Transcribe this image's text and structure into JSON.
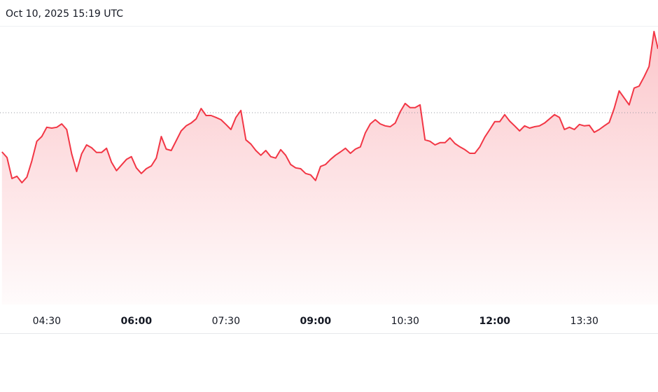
{
  "chart_data": {
    "type": "area-line",
    "title": "Oct 10, 2025 15:19 UTC",
    "x": [
      225,
      230,
      235,
      240,
      245,
      250,
      255,
      260,
      265,
      270,
      275,
      280,
      285,
      290,
      295,
      300,
      305,
      310,
      315,
      320,
      325,
      330,
      335,
      340,
      345,
      350,
      355,
      360,
      365,
      370,
      375,
      380,
      385,
      390,
      395,
      400,
      405,
      410,
      415,
      420,
      425,
      430,
      435,
      440,
      445,
      450,
      455,
      460,
      465,
      470,
      475,
      480,
      485,
      490,
      495,
      500,
      505,
      510,
      515,
      520,
      525,
      530,
      535,
      540,
      545,
      550,
      555,
      560,
      565,
      570,
      575,
      580,
      585,
      590,
      595,
      600,
      605,
      610,
      615,
      620,
      625,
      630,
      635,
      640,
      645,
      650,
      655,
      660,
      665,
      670,
      675,
      680,
      685,
      690,
      695,
      700,
      705,
      710,
      715,
      720,
      725,
      730,
      735,
      740,
      745,
      750,
      755,
      760,
      765,
      770,
      775,
      780,
      785,
      790,
      795,
      800,
      805,
      810,
      815,
      820,
      825,
      830,
      835,
      840,
      845,
      850,
      855,
      860,
      865,
      870,
      875,
      880,
      884
    ],
    "values": [
      54.5,
      52.5,
      45,
      45.8,
      43.5,
      45.5,
      51.3,
      58.3,
      60,
      63.3,
      63,
      63.3,
      64.5,
      62.5,
      53.8,
      47.5,
      53.8,
      57,
      56,
      54.3,
      54.3,
      55.8,
      50.8,
      47.8,
      49.8,
      51.8,
      52.8,
      48.8,
      46.8,
      48.5,
      49.5,
      52.3,
      60,
      55.5,
      55,
      58.5,
      62,
      63.8,
      64.8,
      66.3,
      70,
      67.5,
      67.5,
      66.8,
      66,
      64.3,
      62.5,
      66.8,
      69.3,
      58.8,
      57.3,
      55,
      53.3,
      55,
      52.8,
      52.3,
      55.3,
      53.3,
      50,
      48.8,
      48.5,
      46.8,
      46.3,
      44.3,
      49.3,
      50,
      51.8,
      53.3,
      54.5,
      55.8,
      54,
      55.5,
      56.3,
      61.3,
      64.5,
      66,
      64.5,
      63.8,
      63.5,
      64.8,
      68.8,
      71.8,
      70.3,
      70.3,
      71.3,
      58.8,
      58.3,
      57,
      57.8,
      57.8,
      59.5,
      57.5,
      56.3,
      55.3,
      54,
      54,
      56.3,
      59.8,
      62.5,
      65.3,
      65.3,
      67.8,
      65.5,
      63.8,
      62,
      63.8,
      63,
      63.5,
      63.8,
      64.8,
      66.3,
      67.8,
      66.8,
      62.5,
      63.3,
      62.5,
      64.3,
      63.8,
      64,
      61.5,
      62.5,
      63.8,
      65,
      70,
      76.3,
      73.8,
      71.3,
      77.3,
      78,
      81.3,
      85,
      97.5,
      91.3
    ],
    "color": "#f23645",
    "reference_line": 68.5,
    "xlim": [
      223,
      884
    ],
    "ylim": [
      0,
      100
    ],
    "xticks": [
      {
        "value": 270,
        "label": "04:30"
      },
      {
        "value": 360,
        "label": "06:00"
      },
      {
        "value": 450,
        "label": "07:30"
      },
      {
        "value": 540,
        "label": "09:00"
      },
      {
        "value": 630,
        "label": "10:30"
      },
      {
        "value": 720,
        "label": "12:00"
      },
      {
        "value": 810,
        "label": "13:30"
      }
    ]
  }
}
